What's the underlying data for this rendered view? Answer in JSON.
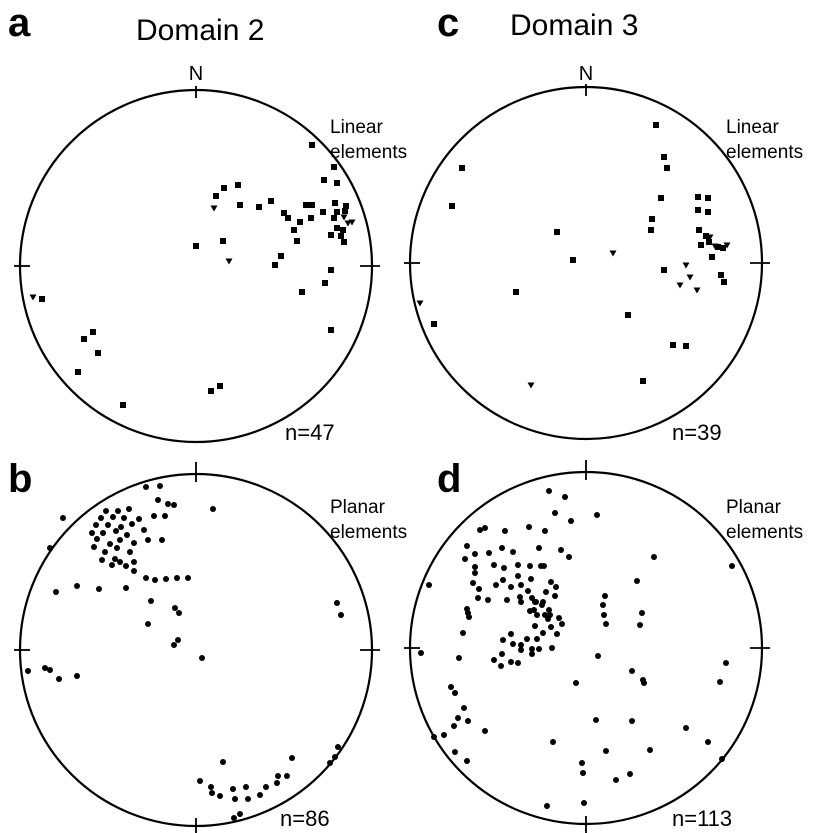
{
  "panels": [
    {
      "id": "a",
      "letter": "a",
      "domain_title": "Domain 2",
      "north_label": "N",
      "type_label_line1": "Linear",
      "type_label_line2": "elements",
      "count_label": "n=47",
      "symbols": [
        "square",
        "triangle"
      ],
      "points_square": [
        [
          312,
          145
        ],
        [
          334,
          167
        ],
        [
          324,
          180
        ],
        [
          337,
          183
        ],
        [
          224,
          188
        ],
        [
          238,
          185
        ],
        [
          216,
          196
        ],
        [
          240,
          205
        ],
        [
          259,
          207
        ],
        [
          271,
          201
        ],
        [
          306,
          205
        ],
        [
          312,
          205
        ],
        [
          335,
          203
        ],
        [
          346,
          206
        ],
        [
          284,
          213
        ],
        [
          288,
          218
        ],
        [
          300,
          222
        ],
        [
          311,
          218
        ],
        [
          323,
          212
        ],
        [
          337,
          212
        ],
        [
          345,
          211
        ],
        [
          334,
          218
        ],
        [
          337,
          228
        ],
        [
          343,
          230
        ],
        [
          341,
          236
        ],
        [
          331,
          235
        ],
        [
          344,
          242
        ],
        [
          294,
          230
        ],
        [
          297,
          241
        ],
        [
          223,
          241
        ],
        [
          196,
          246
        ],
        [
          281,
          256
        ],
        [
          275,
          265
        ],
        [
          331,
          270
        ],
        [
          325,
          283
        ],
        [
          302,
          292
        ],
        [
          42,
          299
        ],
        [
          93,
          332
        ],
        [
          84,
          339
        ],
        [
          98,
          353
        ],
        [
          78,
          372
        ],
        [
          331,
          330
        ],
        [
          220,
          386
        ],
        [
          211,
          391
        ],
        [
          123,
          405
        ]
      ],
      "points_triangle": [
        [
          344,
          217
        ],
        [
          348,
          223
        ],
        [
          352,
          222
        ],
        [
          214,
          208
        ],
        [
          229,
          261
        ],
        [
          33,
          297
        ]
      ]
    },
    {
      "id": "c",
      "letter": "c",
      "domain_title": "Domain 3",
      "north_label": "N",
      "type_label_line1": "Linear",
      "type_label_line2": "elements",
      "count_label": "n=39",
      "symbols": [
        "square",
        "triangle"
      ],
      "points_square": [
        [
          656,
          125
        ],
        [
          664,
          157
        ],
        [
          667,
          168
        ],
        [
          462,
          168
        ],
        [
          452,
          206
        ],
        [
          661,
          198
        ],
        [
          698,
          197
        ],
        [
          708,
          198
        ],
        [
          652,
          219
        ],
        [
          698,
          210
        ],
        [
          708,
          212
        ],
        [
          651,
          230
        ],
        [
          557,
          232
        ],
        [
          699,
          230
        ],
        [
          706,
          236
        ],
        [
          709,
          242
        ],
        [
          701,
          245
        ],
        [
          718,
          247
        ],
        [
          723,
          248
        ],
        [
          712,
          257
        ],
        [
          573,
          260
        ],
        [
          664,
          270
        ],
        [
          721,
          275
        ],
        [
          724,
          282
        ],
        [
          516,
          292
        ],
        [
          628,
          315
        ],
        [
          434,
          324
        ],
        [
          673,
          345
        ],
        [
          686,
          346
        ],
        [
          643,
          381
        ]
      ],
      "points_triangle": [
        [
          710,
          237
        ],
        [
          715,
          246
        ],
        [
          727,
          245
        ],
        [
          613,
          253
        ],
        [
          686,
          265
        ],
        [
          690,
          277
        ],
        [
          680,
          285
        ],
        [
          697,
          290
        ],
        [
          420,
          303
        ],
        [
          531,
          385
        ]
      ]
    },
    {
      "id": "b",
      "letter": "b",
      "domain_title": "",
      "north_label": "",
      "type_label_line1": "Planar",
      "type_label_line2": "elements",
      "count_label": "n=86",
      "symbols": [
        "dot"
      ],
      "points_dot": [
        [
          146,
          487
        ],
        [
          160,
          486
        ],
        [
          158,
          500
        ],
        [
          168,
          504
        ],
        [
          174,
          505
        ],
        [
          129,
          509
        ],
        [
          106,
          511
        ],
        [
          118,
          511
        ],
        [
          213,
          509
        ],
        [
          101,
          518
        ],
        [
          113,
          517
        ],
        [
          124,
          518
        ],
        [
          139,
          519
        ],
        [
          154,
          516
        ],
        [
          165,
          516
        ],
        [
          96,
          525
        ],
        [
          108,
          525
        ],
        [
          121,
          527
        ],
        [
          132,
          524
        ],
        [
          92,
          533
        ],
        [
          103,
          533
        ],
        [
          116,
          531
        ],
        [
          127,
          535
        ],
        [
          144,
          530
        ],
        [
          97,
          539
        ],
        [
          110,
          544
        ],
        [
          120,
          540
        ],
        [
          134,
          543
        ],
        [
          148,
          540
        ],
        [
          162,
          540
        ],
        [
          94,
          547
        ],
        [
          105,
          552
        ],
        [
          117,
          548
        ],
        [
          130,
          552
        ],
        [
          102,
          560
        ],
        [
          115,
          559
        ],
        [
          120,
          562
        ],
        [
          134,
          562
        ],
        [
          63,
          518
        ],
        [
          50,
          548
        ],
        [
          112,
          565
        ],
        [
          126,
          566
        ],
        [
          134,
          571
        ],
        [
          146,
          578
        ],
        [
          155,
          580
        ],
        [
          166,
          579
        ],
        [
          177,
          578
        ],
        [
          188,
          578
        ],
        [
          77,
          586
        ],
        [
          56,
          592
        ],
        [
          99,
          589
        ],
        [
          126,
          588
        ],
        [
          151,
          601
        ],
        [
          175,
          608
        ],
        [
          179,
          613
        ],
        [
          148,
          624
        ],
        [
          178,
          640
        ],
        [
          174,
          645
        ],
        [
          202,
          658
        ],
        [
          337,
          603
        ],
        [
          341,
          615
        ],
        [
          45,
          668
        ],
        [
          50,
          670
        ],
        [
          59,
          679
        ],
        [
          77,
          676
        ],
        [
          28,
          671
        ],
        [
          223,
          762
        ],
        [
          200,
          781
        ],
        [
          211,
          787
        ],
        [
          212,
          793
        ],
        [
          220,
          796
        ],
        [
          233,
          789
        ],
        [
          246,
          787
        ],
        [
          235,
          799
        ],
        [
          248,
          799
        ],
        [
          260,
          795
        ],
        [
          266,
          787
        ],
        [
          277,
          783
        ],
        [
          278,
          776
        ],
        [
          287,
          776
        ],
        [
          292,
          758
        ],
        [
          330,
          763
        ],
        [
          335,
          757
        ],
        [
          338,
          747
        ],
        [
          240,
          814
        ],
        [
          234,
          818
        ]
      ]
    },
    {
      "id": "d",
      "letter": "d",
      "domain_title": "",
      "north_label": "",
      "type_label_line1": "Planar",
      "type_label_line2": "elements",
      "count_label": "n=113",
      "symbols": [
        "dot"
      ],
      "points_dot": [
        [
          549,
          491
        ],
        [
          565,
          497
        ],
        [
          555,
          513
        ],
        [
          571,
          521
        ],
        [
          597,
          515
        ],
        [
          485,
          528
        ],
        [
          480,
          530
        ],
        [
          505,
          531
        ],
        [
          529,
          527
        ],
        [
          545,
          531
        ],
        [
          467,
          546
        ],
        [
          475,
          554
        ],
        [
          489,
          553
        ],
        [
          502,
          548
        ],
        [
          513,
          552
        ],
        [
          539,
          548
        ],
        [
          561,
          550
        ],
        [
          569,
          557
        ],
        [
          465,
          559
        ],
        [
          475,
          567
        ],
        [
          494,
          565
        ],
        [
          504,
          568
        ],
        [
          518,
          565
        ],
        [
          530,
          566
        ],
        [
          541,
          566
        ],
        [
          544,
          566
        ],
        [
          475,
          573
        ],
        [
          518,
          576
        ],
        [
          503,
          580
        ],
        [
          531,
          579
        ],
        [
          551,
          582
        ],
        [
          556,
          587
        ],
        [
          473,
          583
        ],
        [
          479,
          589
        ],
        [
          496,
          585
        ],
        [
          511,
          587
        ],
        [
          521,
          585
        ],
        [
          528,
          591
        ],
        [
          546,
          592
        ],
        [
          555,
          596
        ],
        [
          478,
          598
        ],
        [
          488,
          600
        ],
        [
          507,
          600
        ],
        [
          520,
          597
        ],
        [
          532,
          598
        ],
        [
          535,
          602
        ],
        [
          542,
          605
        ],
        [
          549,
          610
        ],
        [
          548,
          619
        ],
        [
          467,
          609
        ],
        [
          468,
          613
        ],
        [
          469,
          617
        ],
        [
          530,
          611
        ],
        [
          534,
          610
        ],
        [
          537,
          615
        ],
        [
          545,
          615
        ],
        [
          521,
          602
        ],
        [
          536,
          602
        ],
        [
          543,
          602
        ],
        [
          550,
          615
        ],
        [
          559,
          618
        ],
        [
          535,
          626
        ],
        [
          551,
          627
        ],
        [
          562,
          624
        ],
        [
          511,
          634
        ],
        [
          503,
          640
        ],
        [
          513,
          644
        ],
        [
          527,
          639
        ],
        [
          537,
          639
        ],
        [
          543,
          633
        ],
        [
          557,
          634
        ],
        [
          521,
          645
        ],
        [
          539,
          649
        ],
        [
          552,
          648
        ],
        [
          532,
          654
        ],
        [
          502,
          654
        ],
        [
          521,
          650
        ],
        [
          494,
          660
        ],
        [
          501,
          666
        ],
        [
          511,
          662
        ],
        [
          518,
          663
        ],
        [
          532,
          649
        ],
        [
          459,
          658
        ],
        [
          429,
          585
        ],
        [
          421,
          653
        ],
        [
          463,
          633
        ],
        [
          605,
          596
        ],
        [
          603,
          605
        ],
        [
          604,
          615
        ],
        [
          606,
          624
        ],
        [
          598,
          656
        ],
        [
          637,
          581
        ],
        [
          654,
          557
        ],
        [
          642,
          613
        ],
        [
          640,
          625
        ],
        [
          643,
          680
        ],
        [
          644,
          683
        ],
        [
          632,
          671
        ],
        [
          726,
          663
        ],
        [
          720,
          682
        ],
        [
          576,
          683
        ],
        [
          732,
          566
        ],
        [
          451,
          687
        ],
        [
          455,
          693
        ],
        [
          464,
          708
        ],
        [
          458,
          718
        ],
        [
          454,
          726
        ],
        [
          468,
          721
        ],
        [
          485,
          731
        ],
        [
          444,
          735
        ],
        [
          434,
          737
        ],
        [
          455,
          752
        ],
        [
          467,
          761
        ],
        [
          553,
          742
        ],
        [
          582,
          763
        ],
        [
          583,
          773
        ],
        [
          547,
          806
        ],
        [
          584,
          803
        ],
        [
          596,
          720
        ],
        [
          606,
          751
        ],
        [
          616,
          780
        ],
        [
          630,
          774
        ],
        [
          632,
          721
        ],
        [
          650,
          750
        ],
        [
          686,
          728
        ],
        [
          708,
          742
        ],
        [
          722,
          759
        ]
      ]
    }
  ]
}
